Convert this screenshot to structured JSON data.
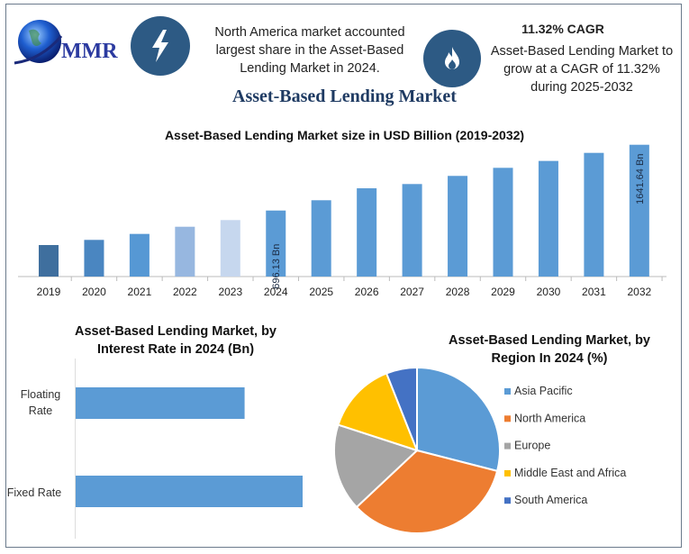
{
  "logo": {
    "text": "MMR"
  },
  "header": {
    "icon_left": "lightning-bolt-icon",
    "left_text": "North America market accounted largest share in the Asset-Based Lending Market in 2024.",
    "icon_right": "flame-icon",
    "cagr_title": "11.32% CAGR",
    "right_text": "Asset-Based Lending Market to grow at a CAGR of 11.32% during 2025-2032"
  },
  "title": "Asset-Based Lending Market",
  "chart_data": [
    {
      "type": "bar",
      "title": "Asset-Based Lending Market size in USD Billion (2019-2032)",
      "categories": [
        "2019",
        "2020",
        "2021",
        "2022",
        "2023",
        "2024",
        "2025",
        "2026",
        "2027",
        "2028",
        "2029",
        "2030",
        "2031",
        "2032"
      ],
      "values": [
        200,
        274,
        360,
        463,
        559,
        696.13,
        844,
        1016,
        1077,
        1194,
        1310,
        1409,
        1525,
        1641.64
      ],
      "data_labels": {
        "2024": "696.13 Bn",
        "2032": "1641.64 Bn"
      },
      "colors": [
        "#3f6f9e",
        "#4a86c1",
        "#5698d4",
        "#97b7e0",
        "#c6d7ee",
        "#5b9bd5",
        "#5b9bd5",
        "#5b9bd5",
        "#5b9bd5",
        "#5b9bd5",
        "#5b9bd5",
        "#5b9bd5",
        "#5b9bd5",
        "#5b9bd5"
      ],
      "grid": false
    },
    {
      "type": "bar",
      "orientation": "horizontal",
      "title": "Asset-Based Lending Market, by Interest Rate in 2024 (Bn)",
      "categories": [
        "Floating Rate",
        "Fixed Rate"
      ],
      "values": [
        297,
        399
      ],
      "color": "#5b9bd5"
    },
    {
      "type": "pie",
      "title": "Asset-Based Lending Market, by Region In 2024 (%)",
      "categories": [
        "Asia Pacific",
        "North America",
        "Europe",
        "Middle East and Africa",
        "South America"
      ],
      "values": [
        29,
        34,
        17,
        14,
        6
      ],
      "colors": [
        "#5b9bd5",
        "#ed7d31",
        "#a5a5a5",
        "#ffc000",
        "#4472c4"
      ],
      "legend": "right"
    }
  ]
}
